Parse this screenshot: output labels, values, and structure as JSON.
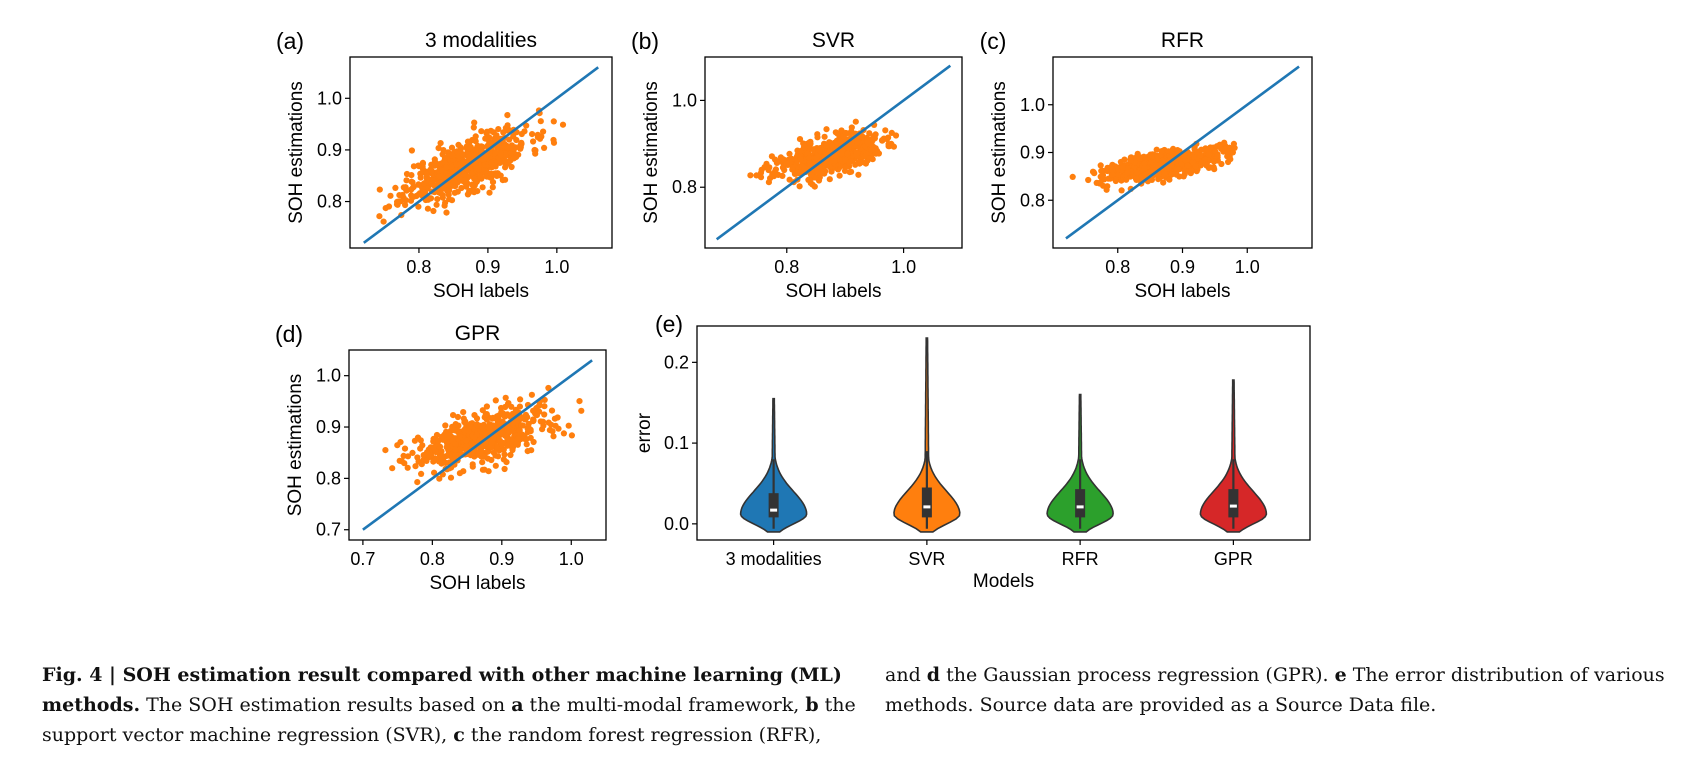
{
  "colors": {
    "scatter": "#ff7f0e",
    "line": "#1f77b4",
    "violin_b": "#ff7f0e",
    "violin_a": "#1f77b4",
    "violin_c": "#2ca02c",
    "violin_d": "#d62728",
    "box": "#333333"
  },
  "chart_data": [
    {
      "panel": "(a)",
      "type": "scatter",
      "title": "3 modalities",
      "xlabel": "SOH labels",
      "ylabel": "SOH estimations",
      "xlim": [
        0.7,
        1.08
      ],
      "ylim": [
        0.71,
        1.08
      ],
      "xticks": [
        0.8,
        0.9,
        1.0
      ],
      "xtick_labels": [
        "0.8",
        "0.9",
        "1.0"
      ],
      "yticks": [
        0.8,
        0.9,
        1.0
      ],
      "ytick_labels": [
        "0.8",
        "0.9",
        "1.0"
      ],
      "reference_line": {
        "x": [
          0.72,
          1.06
        ],
        "y": [
          0.72,
          1.06
        ]
      },
      "points": {
        "count": 600,
        "center": [
          0.87,
          0.87
        ],
        "spread_x": 0.045,
        "spread_y": 0.035,
        "corr": 0.7,
        "seed": 11
      }
    },
    {
      "panel": "(b)",
      "type": "scatter",
      "title": "SVR",
      "xlabel": "SOH labels",
      "ylabel": "SOH estimations",
      "xlim": [
        0.66,
        1.1
      ],
      "ylim": [
        0.66,
        1.1
      ],
      "xticks": [
        0.8,
        1.0
      ],
      "xtick_labels": [
        "0.8",
        "1.0"
      ],
      "yticks": [
        0.8,
        1.0
      ],
      "ytick_labels": [
        "0.8",
        "1.0"
      ],
      "reference_line": {
        "x": [
          0.68,
          1.08
        ],
        "y": [
          0.68,
          1.08
        ]
      },
      "points": {
        "count": 600,
        "center": [
          0.87,
          0.87
        ],
        "spread_x": 0.045,
        "spread_y": 0.025,
        "corr": 0.55,
        "seed": 23
      }
    },
    {
      "panel": "(c)",
      "type": "scatter",
      "title": "RFR",
      "xlabel": "SOH labels",
      "ylabel": "SOH estimations",
      "xlim": [
        0.7,
        1.1
      ],
      "ylim": [
        0.7,
        1.1
      ],
      "xticks": [
        0.8,
        0.9,
        1.0
      ],
      "xtick_labels": [
        "0.8",
        "0.9",
        "1.0"
      ],
      "yticks": [
        0.8,
        0.9,
        1.0
      ],
      "ytick_labels": [
        "0.8",
        "0.9",
        "1.0"
      ],
      "reference_line": {
        "x": [
          0.72,
          1.08
        ],
        "y": [
          0.72,
          1.08
        ]
      },
      "points": {
        "count": 600,
        "center": [
          0.87,
          0.875
        ],
        "spread_x": 0.045,
        "spread_y": 0.017,
        "corr": 0.6,
        "seed": 37
      }
    },
    {
      "panel": "(d)",
      "type": "scatter",
      "title": "GPR",
      "xlabel": "SOH labels",
      "ylabel": "SOH estimations",
      "xlim": [
        0.68,
        1.05
      ],
      "ylim": [
        0.68,
        1.05
      ],
      "xticks": [
        0.7,
        0.8,
        0.9,
        1.0
      ],
      "xtick_labels": [
        "0.7",
        "0.8",
        "0.9",
        "1.0"
      ],
      "yticks": [
        0.7,
        0.8,
        0.9,
        1.0
      ],
      "ytick_labels": [
        "0.7",
        "0.8",
        "0.9",
        "1.0"
      ],
      "reference_line": {
        "x": [
          0.7,
          1.03
        ],
        "y": [
          0.7,
          1.03
        ]
      },
      "points": {
        "count": 600,
        "center": [
          0.875,
          0.88
        ],
        "spread_x": 0.05,
        "spread_y": 0.03,
        "corr": 0.6,
        "seed": 53
      }
    },
    {
      "panel": "(e)",
      "type": "violin",
      "title": "",
      "xlabel": "Models",
      "ylabel": "error",
      "ylim": [
        -0.02,
        0.245
      ],
      "yticks": [
        0.0,
        0.1,
        0.2
      ],
      "ytick_labels": [
        "0.0",
        "0.1",
        "0.2"
      ],
      "categories": [
        "3 modalities",
        "SVR",
        "RFR",
        "GPR"
      ],
      "series": [
        {
          "name": "3 modalities",
          "min": -0.01,
          "max": 0.155,
          "q1": 0.008,
          "median": 0.017,
          "q3": 0.038,
          "whisker_hi": 0.08
        },
        {
          "name": "SVR",
          "min": -0.01,
          "max": 0.23,
          "q1": 0.008,
          "median": 0.021,
          "q3": 0.045,
          "whisker_hi": 0.09
        },
        {
          "name": "RFR",
          "min": -0.01,
          "max": 0.16,
          "q1": 0.008,
          "median": 0.021,
          "q3": 0.043,
          "whisker_hi": 0.08
        },
        {
          "name": "GPR",
          "min": -0.01,
          "max": 0.178,
          "q1": 0.008,
          "median": 0.022,
          "q3": 0.043,
          "whisker_hi": 0.08
        }
      ]
    }
  ],
  "caption": {
    "label": "Fig. 4 | SOH estimation result compared with other machine learning (ML) methods.",
    "text_1": " The SOH estimation results based on ",
    "a": "a",
    "text_a": " the multi-modal framework, ",
    "b": "b",
    "text_b": " the support vector machine regression (SVR), ",
    "c": "c",
    "text_c": " the random forest regression (RFR),",
    "text_and": "and ",
    "d": "d",
    "text_d": " the Gaussian process regression (GPR). ",
    "e": "e",
    "text_e": " The error distribution of various methods. Source data are provided as a Source Data file."
  }
}
